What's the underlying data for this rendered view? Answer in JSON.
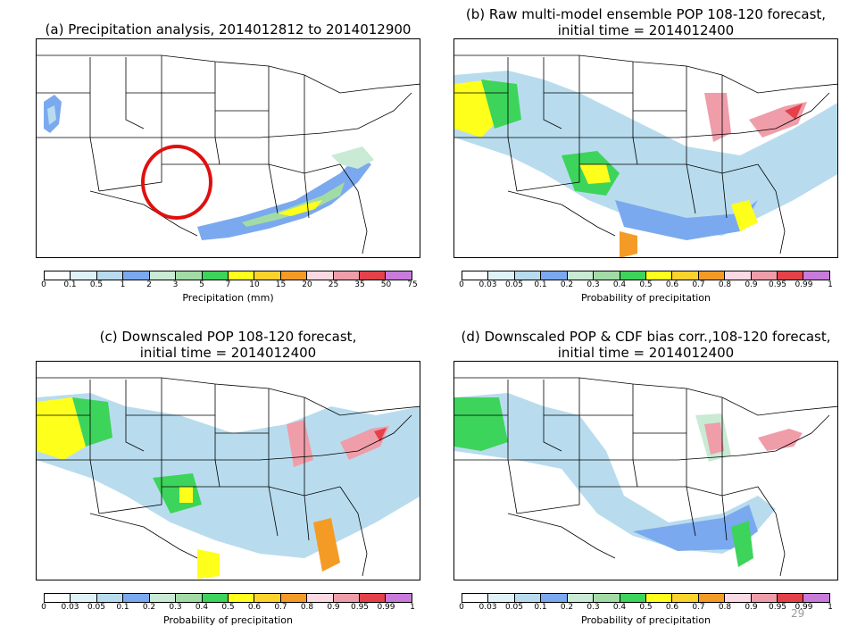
{
  "colors": {
    "prob": [
      "#ffffff",
      "#dff2f8",
      "#b8dcee",
      "#7aa9ef",
      "#c9ead4",
      "#a3dba6",
      "#3dd45b",
      "#ffff1c",
      "#fbd32b",
      "#f49b26",
      "#fbd9e2",
      "#ef9da9",
      "#e4414b",
      "#c87bdb"
    ],
    "precip": [
      "#ffffff",
      "#dff2f8",
      "#b8dcee",
      "#7aa9ef",
      "#c9ead4",
      "#a3dba6",
      "#3dd45b",
      "#ffff1c",
      "#fbd32b",
      "#f49b26",
      "#fbd9e2",
      "#ef9da9",
      "#e4414b",
      "#c87bdb"
    ]
  },
  "panels": [
    {
      "title_line1": "(a) Precipitation analysis, 2014012812 to 2014012900",
      "title_line2": "",
      "colorbar_ticks": [
        "0",
        "0.1",
        "0.5",
        "1",
        "2",
        "3",
        "5",
        "7",
        "10",
        "15",
        "20",
        "25",
        "35",
        "50",
        "75"
      ],
      "colorbar_label": "Precipitation (mm)",
      "annotation": "red-circle"
    },
    {
      "title_line1": "(b) Raw multi-model ensemble POP 108-120 forecast,",
      "title_line2": "initial time = 2014012400",
      "colorbar_ticks": [
        "0",
        "0.03",
        "0.05",
        "0.1",
        "0.2",
        "0.3",
        "0.4",
        "0.5",
        "0.6",
        "0.7",
        "0.8",
        "0.9",
        "0.95",
        "0.99",
        "1"
      ],
      "colorbar_label": "Probability of precipitation"
    },
    {
      "title_line1": "(c) Downscaled POP 108-120 forecast,",
      "title_line2": "initial time = 2014012400",
      "colorbar_ticks": [
        "0",
        "0.03",
        "0.05",
        "0.1",
        "0.2",
        "0.3",
        "0.4",
        "0.5",
        "0.6",
        "0.7",
        "0.8",
        "0.9",
        "0.95",
        "0.99",
        "1"
      ],
      "colorbar_label": "Probability of precipitation"
    },
    {
      "title_line1": "(d) Downscaled POP & CDF bias corr.,108-120 forecast,",
      "title_line2": "initial time = 2014012400",
      "colorbar_ticks": [
        "0",
        "0.03",
        "0.05",
        "0.1",
        "0.2",
        "0.3",
        "0.4",
        "0.5",
        "0.6",
        "0.7",
        "0.8",
        "0.9",
        "0.95",
        "0.99",
        "1"
      ],
      "colorbar_label": "Probability of precipitation"
    }
  ],
  "page_number": "29"
}
